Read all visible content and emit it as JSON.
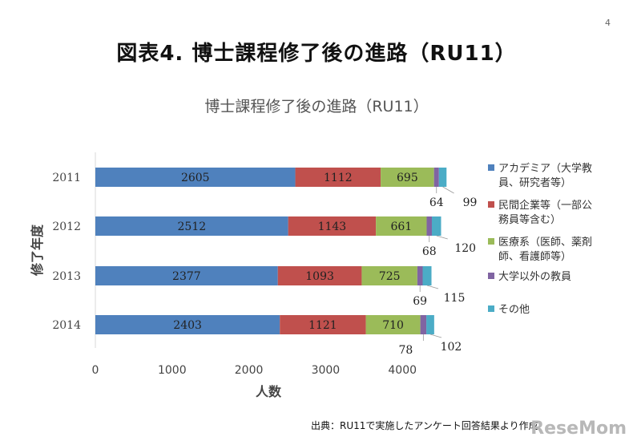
{
  "page_number": "4",
  "slide_title": "図表4. 博士課程修了後の進路（RU11）",
  "source_note": "出典：RU11で実施したアンケート回答結果より作成",
  "watermark": "ReseMom",
  "chart_data": {
    "type": "bar",
    "orientation": "horizontal",
    "stacked": true,
    "title": "博士課程修了後の進路（RU11）",
    "xlabel": "人数",
    "ylabel": "修了年度",
    "categories": [
      "2011",
      "2012",
      "2013",
      "2014"
    ],
    "xlim": [
      0,
      5000
    ],
    "xticks": [
      0,
      1000,
      2000,
      3000,
      4000
    ],
    "grid": false,
    "legend_position": "right",
    "series": [
      {
        "name": "アカデミア（大学教員、研究者等）",
        "color": "#4f81bd",
        "values": [
          2605,
          2512,
          2377,
          2403
        ]
      },
      {
        "name": "民間企業等（一部公務員等含む）",
        "color": "#c0504d",
        "values": [
          1112,
          1143,
          1093,
          1121
        ]
      },
      {
        "name": "医療系（医師、薬剤師、看護師等）",
        "color": "#9bbb59",
        "values": [
          695,
          661,
          725,
          710
        ]
      },
      {
        "name": "大学以外の教員",
        "color": "#8064a2",
        "values": [
          64,
          68,
          69,
          78
        ]
      },
      {
        "name": "その他",
        "color": "#4bacc6",
        "values": [
          99,
          120,
          115,
          102
        ]
      }
    ]
  }
}
